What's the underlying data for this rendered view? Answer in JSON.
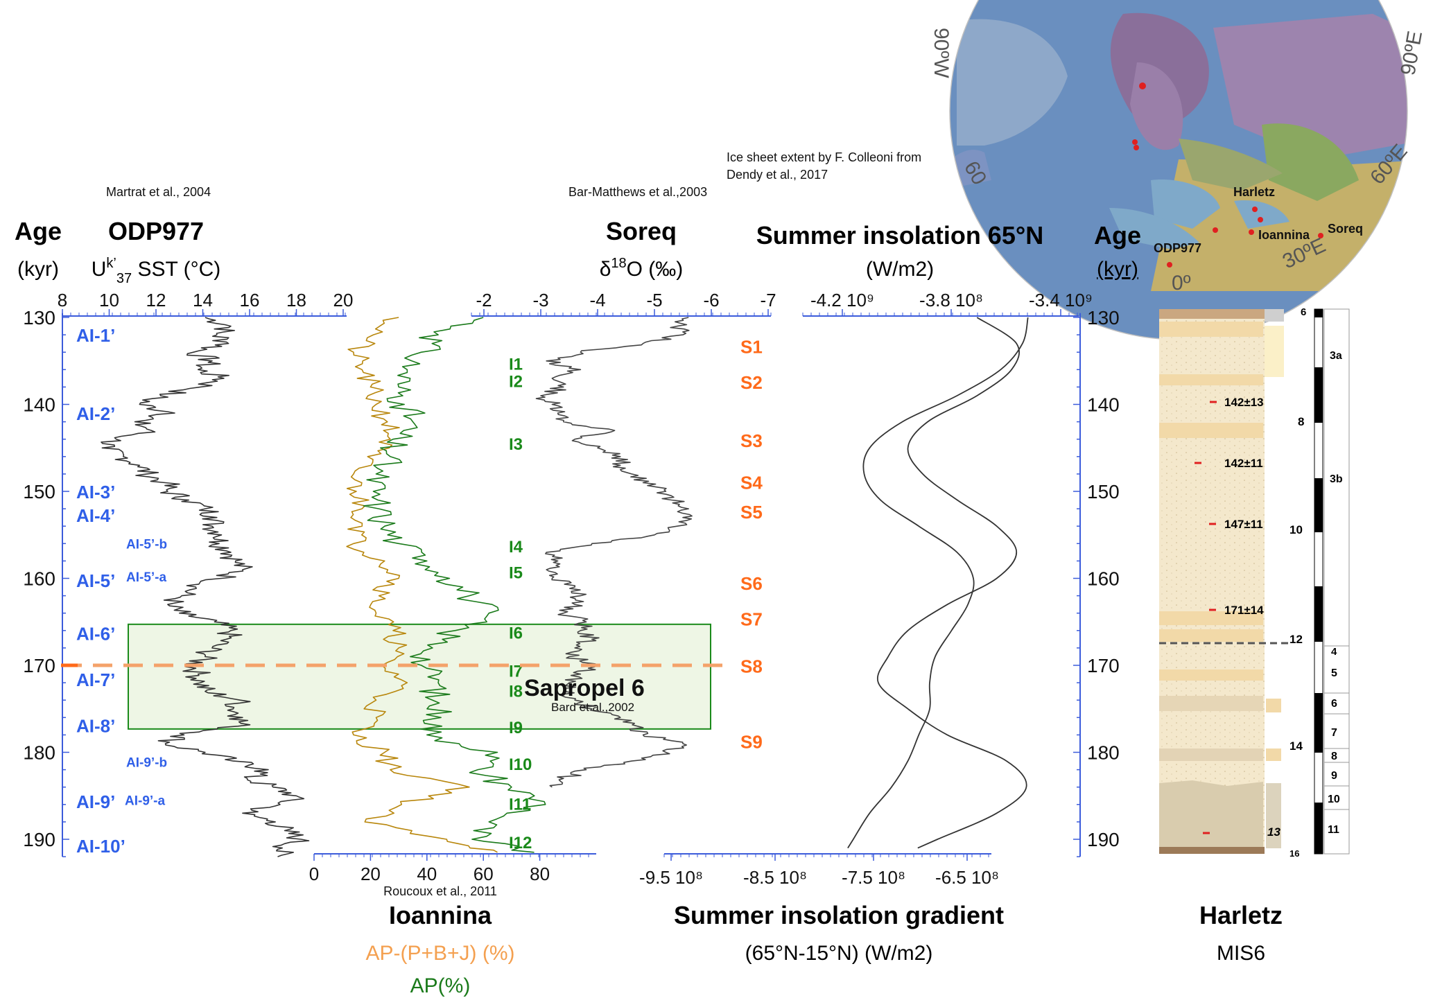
{
  "citations": {
    "odp": "Martrat et al., 2004",
    "soreq": "Bar-Matthews et al.,2003",
    "ioannina": "Roucoux et al., 2011",
    "sapropel": "Bard et al.,2002",
    "map": [
      "Ice sheet extent by F.  Colleoni from",
      "Dendy et al., 2017"
    ]
  },
  "headers": {
    "age": "Age",
    "kyr": "(kyr)",
    "odp_title": "ODP977",
    "odp_sub_pre": "U",
    "odp_sub_sup": "k’",
    "odp_sub_sub": "37",
    "odp_sub_post": " SST (°C)",
    "soreq_title": "Soreq",
    "soreq_sub_pre": "δ",
    "soreq_sub_sup": "18",
    "soreq_sub_post": "O (‰)",
    "insol_title": "Summer insolation 65°N",
    "insol_sub": "(W/m2)",
    "ioannina_title": "Ioannina",
    "ioannina_ap_pbj": "AP-(P+B+J) (%)",
    "ioannina_ap": "AP(%)",
    "gradient_title": "Summer insolation gradient",
    "gradient_sub": "(65°N-15°N) (W/m2)",
    "harletz_title": "Harletz",
    "harletz_sub": "MIS6"
  },
  "colors": {
    "blue_axis": "#3b5bdb",
    "odp_line": "#333333",
    "soreq_line": "#444444",
    "ioannina_ap_pbj": "#b8860b",
    "ioannina_ap": "#1a7a1a",
    "sapropel": "#ff6a1a",
    "interstadial": "#1a8a1a",
    "ai_label": "#2f5fe8",
    "sapropel_box": "#e8f3dc",
    "dashed": "#f4a26a"
  },
  "chart_data": [
    {
      "type": "line",
      "name": "ODP977 SST",
      "y_axis": "Age (kyr)",
      "ylim": [
        130,
        192
      ],
      "yticks": [
        "130",
        "140",
        "150",
        "160",
        "170",
        "180",
        "190"
      ],
      "xlim": [
        8,
        20
      ],
      "xticks": [
        "8",
        "10",
        "12",
        "14",
        "16",
        "18",
        "20"
      ],
      "series": [
        {
          "age": [
            130,
            131,
            132,
            133,
            134,
            135,
            136,
            137,
            138,
            139,
            140,
            141,
            142,
            143,
            144,
            145,
            146,
            147,
            148,
            149,
            150,
            151,
            152,
            153,
            154,
            155,
            156,
            157,
            158,
            159,
            160,
            161,
            162,
            163,
            164,
            165,
            166,
            167,
            168,
            169,
            170,
            171,
            172,
            173,
            174,
            175,
            176,
            177,
            178,
            179,
            180,
            181,
            182,
            183,
            184,
            185,
            186,
            187,
            188,
            189,
            190,
            191,
            192
          ],
          "sst": [
            14.1,
            15.2,
            14.6,
            15.1,
            13.6,
            14.4,
            13.8,
            14.9,
            13.9,
            12.2,
            11.3,
            12.8,
            11.1,
            11.8,
            10.3,
            9.7,
            10.6,
            11.3,
            11.6,
            12.4,
            12.5,
            13.4,
            14.1,
            14.6,
            14.4,
            14.8,
            14.7,
            15.2,
            15.4,
            15.7,
            14.8,
            13.7,
            13.1,
            12.5,
            13.0,
            14.5,
            15.2,
            15.0,
            14.4,
            14.1,
            13.6,
            13.8,
            13.9,
            14.1,
            15.6,
            15.3,
            15.7,
            15.5,
            13.2,
            12.4,
            14.1,
            15.3,
            16.8,
            15.9,
            17.0,
            18.0,
            17.3,
            15.7,
            17.1,
            17.5,
            18.2,
            17.4,
            17.2
          ]
        }
      ]
    },
    {
      "type": "line",
      "name": "Soreq δ18O",
      "xlim": [
        -2,
        -7
      ],
      "xticks": [
        "-2",
        "-3",
        "-4",
        "-5",
        "-6",
        "-7"
      ],
      "series": [
        {
          "age": [
            130,
            131,
            132,
            133,
            134,
            135,
            136,
            137,
            138,
            139,
            140,
            141,
            142,
            143,
            144,
            145,
            146,
            147,
            148,
            149,
            150,
            151,
            152,
            153,
            154,
            155,
            156,
            157,
            158,
            159,
            160,
            161,
            162,
            163,
            164,
            165,
            166,
            167,
            168,
            169,
            170,
            171,
            172,
            173,
            174,
            175,
            176,
            177,
            178,
            179,
            180,
            181,
            182,
            183,
            184
          ],
          "d18o": [
            -5.6,
            -5.4,
            -5.5,
            -4.8,
            -3.7,
            -3.1,
            -3.7,
            -3.2,
            -3.4,
            -3.0,
            -3.2,
            -3.3,
            -3.4,
            -4.3,
            -3.6,
            -4.0,
            -4.4,
            -4.4,
            -4.6,
            -4.8,
            -5.2,
            -5.3,
            -5.6,
            -5.5,
            -5.4,
            -5.0,
            -3.9,
            -3.1,
            -3.3,
            -3.1,
            -3.2,
            -3.6,
            -3.7,
            -3.6,
            -3.4,
            -3.8,
            -3.7,
            -3.9,
            -3.6,
            -3.5,
            -4.0,
            -3.7,
            -3.5,
            -3.4,
            -3.6,
            -3.9,
            -4.4,
            -4.7,
            -4.8,
            -5.5,
            -5.2,
            -4.6,
            -3.8,
            -3.4,
            -3.2
          ]
        }
      ]
    },
    {
      "type": "line",
      "name": "Ioannina pollen",
      "xlim": [
        0,
        100
      ],
      "xticks": [
        "0",
        "20",
        "40",
        "60",
        "80"
      ],
      "series": [
        {
          "name": "AP-(P+B+J) (%)",
          "age": [
            130,
            132,
            134,
            136,
            138,
            140,
            142,
            144,
            146,
            148,
            150,
            152,
            154,
            156,
            158,
            160,
            162,
            164,
            166,
            168,
            170,
            172,
            174,
            176,
            178,
            180,
            182,
            184,
            186,
            188,
            190,
            191.5
          ],
          "values": [
            30,
            21,
            14,
            17,
            20,
            22,
            26,
            27,
            19,
            14,
            15,
            17,
            17,
            14,
            25,
            30,
            23,
            22,
            28,
            30,
            24,
            33,
            22,
            22,
            14,
            25,
            27,
            55,
            31,
            18,
            47,
            65
          ]
        },
        {
          "name": "AP(%)",
          "age": [
            130,
            132,
            134,
            136,
            138,
            140,
            142,
            144,
            146,
            148,
            150,
            152,
            154,
            156,
            158,
            160,
            162,
            164,
            166,
            168,
            170,
            172,
            174,
            176,
            178,
            180,
            182,
            184,
            186,
            188,
            190,
            191.5
          ],
          "values": [
            60,
            44,
            38,
            33,
            30,
            32,
            35,
            28,
            27,
            22,
            21,
            23,
            25,
            30,
            40,
            48,
            55,
            62,
            50,
            42,
            38,
            44,
            42,
            45,
            40,
            65,
            58,
            70,
            82,
            62,
            56,
            78
          ]
        }
      ]
    },
    {
      "type": "line",
      "name": "Summer insolation 65N and gradient",
      "xticks_top": [
        "-4.2 10⁹",
        "-3.8 10⁸",
        "-3.4 10⁹"
      ],
      "xticks_bottom": [
        "-9.5 10⁸",
        "-8.5 10⁸",
        "-7.5 10⁸",
        "-6.5 10⁸"
      ],
      "series": [
        {
          "name": "Summer insolation 65°N",
          "age": [
            130,
            133,
            136,
            139,
            142,
            145,
            148,
            151,
            154,
            157,
            160,
            163,
            166,
            169,
            172,
            175,
            178,
            181,
            184,
            187,
            190,
            191
          ],
          "values": [
            -3.52,
            -3.54,
            -3.62,
            -3.78,
            -3.98,
            -4.1,
            -4.12,
            -4.06,
            -3.92,
            -3.78,
            -3.72,
            -3.74,
            -3.8,
            -3.86,
            -3.88,
            -3.88,
            -3.92,
            -3.96,
            -4.02,
            -4.1,
            -4.16,
            -4.18
          ]
        },
        {
          "name": "Summer insolation gradient",
          "age": [
            130,
            133,
            136,
            139,
            142,
            145,
            148,
            151,
            154,
            157,
            160,
            163,
            166,
            169,
            172,
            175,
            178,
            181,
            184,
            187,
            190,
            191
          ],
          "values": [
            -6.4,
            -6.0,
            -6.05,
            -6.4,
            -6.9,
            -7.1,
            -6.95,
            -6.6,
            -6.2,
            -6.0,
            -6.2,
            -6.7,
            -7.1,
            -7.3,
            -7.4,
            -7.1,
            -6.7,
            -6.1,
            -5.9,
            -6.2,
            -6.8,
            -7.0
          ]
        }
      ]
    }
  ],
  "ai_labels": [
    {
      "text": "AI-1’",
      "age": 132,
      "size": "big"
    },
    {
      "text": "AI-2’",
      "age": 141,
      "size": "big"
    },
    {
      "text": "AI-3’",
      "age": 150,
      "size": "big"
    },
    {
      "text": "AI-4’",
      "age": 152.7,
      "size": "big"
    },
    {
      "text": "AI-5’-b",
      "age": 156,
      "size": "small"
    },
    {
      "text": "AI-5’",
      "age": 160.2,
      "size": "big"
    },
    {
      "text": "AI-5’-a",
      "age": 159.8,
      "size": "small"
    },
    {
      "text": "AI-6’",
      "age": 166.3,
      "size": "big"
    },
    {
      "text": "AI-7’",
      "age": 171.6,
      "size": "big"
    },
    {
      "text": "AI-8’",
      "age": 176.9,
      "size": "big"
    },
    {
      "text": "AI-9’-b",
      "age": 181.1,
      "size": "small"
    },
    {
      "text": "AI-9’",
      "age": 185.6,
      "size": "big"
    },
    {
      "text": "AI-9’-a",
      "age": 185.5,
      "size": "small"
    },
    {
      "text": "AI-10’",
      "age": 190.7,
      "size": "big"
    }
  ],
  "i_labels": [
    {
      "text": "I1",
      "age": 135.3
    },
    {
      "text": "I2",
      "age": 137.3
    },
    {
      "text": "I3",
      "age": 144.5
    },
    {
      "text": "I4",
      "age": 156.3
    },
    {
      "text": "I5",
      "age": 159.3
    },
    {
      "text": "I6",
      "age": 166.2
    },
    {
      "text": "I7",
      "age": 170.6
    },
    {
      "text": "I8",
      "age": 172.9
    },
    {
      "text": "I9",
      "age": 177.1
    },
    {
      "text": "I10",
      "age": 181.3
    },
    {
      "text": "I11",
      "age": 185.9
    },
    {
      "text": "I12",
      "age": 190.3
    }
  ],
  "s_labels": [
    {
      "text": "S1",
      "age": 133.4
    },
    {
      "text": "S2",
      "age": 137.5
    },
    {
      "text": "S3",
      "age": 144.2
    },
    {
      "text": "S4",
      "age": 149
    },
    {
      "text": "S5",
      "age": 152.4
    },
    {
      "text": "S6",
      "age": 160.6
    },
    {
      "text": "S7",
      "age": 164.7
    },
    {
      "text": "S8",
      "age": 170.1
    },
    {
      "text": "S9",
      "age": 178.8
    }
  ],
  "sapropel": {
    "label": "Sapropel 6",
    "age_top": 166,
    "age_bottom": 177,
    "dashed_age": 170
  },
  "harletz_column": {
    "dates": [
      "142±13",
      "142±11",
      "147±11",
      "171±14"
    ],
    "mis": [
      "6",
      "8",
      "10",
      "12",
      "14",
      "16"
    ],
    "units": [
      "3a",
      "3b",
      "4",
      "5",
      "6",
      "7",
      "8",
      "9",
      "10",
      "11"
    ],
    "unit_13": "13"
  },
  "map": {
    "sites": [
      "Harletz",
      "Ioannina",
      "Soreq",
      "ODP977"
    ],
    "graticule": [
      "90ºW",
      "60",
      "60ºE",
      "90ºE",
      "30ºE",
      "0º"
    ]
  }
}
